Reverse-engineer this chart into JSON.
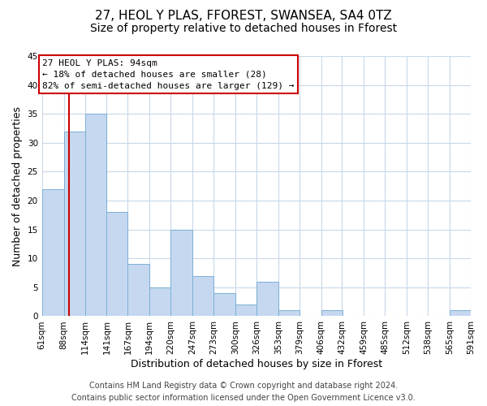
{
  "title": "27, HEOL Y PLAS, FFOREST, SWANSEA, SA4 0TZ",
  "subtitle": "Size of property relative to detached houses in Fforest",
  "xlabel": "Distribution of detached houses by size in Fforest",
  "ylabel": "Number of detached properties",
  "footer_line1": "Contains HM Land Registry data © Crown copyright and database right 2024.",
  "footer_line2": "Contains public sector information licensed under the Open Government Licence v3.0.",
  "bin_edges": [
    61,
    88,
    114,
    141,
    167,
    194,
    220,
    247,
    273,
    300,
    326,
    353,
    379,
    406,
    432,
    459,
    485,
    512,
    538,
    565,
    591
  ],
  "bin_labels": [
    "61sqm",
    "88sqm",
    "114sqm",
    "141sqm",
    "167sqm",
    "194sqm",
    "220sqm",
    "247sqm",
    "273sqm",
    "300sqm",
    "326sqm",
    "353sqm",
    "379sqm",
    "406sqm",
    "432sqm",
    "459sqm",
    "485sqm",
    "512sqm",
    "538sqm",
    "565sqm",
    "591sqm"
  ],
  "counts": [
    22,
    32,
    35,
    18,
    9,
    5,
    15,
    7,
    4,
    2,
    6,
    1,
    0,
    1,
    0,
    0,
    0,
    0,
    0,
    1
  ],
  "bar_color": "#c5d8f0",
  "bar_edge_color": "#7bafd4",
  "vline_x": 94,
  "vline_color": "#cc0000",
  "annotation_line1": "27 HEOL Y PLAS: 94sqm",
  "annotation_line2": "← 18% of detached houses are smaller (28)",
  "annotation_line3": "82% of semi-detached houses are larger (129) →",
  "box_edge_color": "#cc0000",
  "ylim": [
    0,
    45
  ],
  "yticks": [
    0,
    5,
    10,
    15,
    20,
    25,
    30,
    35,
    40,
    45
  ],
  "background_color": "#ffffff",
  "grid_color": "#c8d8e8",
  "title_fontsize": 11,
  "subtitle_fontsize": 10,
  "axis_label_fontsize": 9,
  "tick_fontsize": 7.5,
  "annotation_fontsize": 8,
  "footer_fontsize": 7
}
